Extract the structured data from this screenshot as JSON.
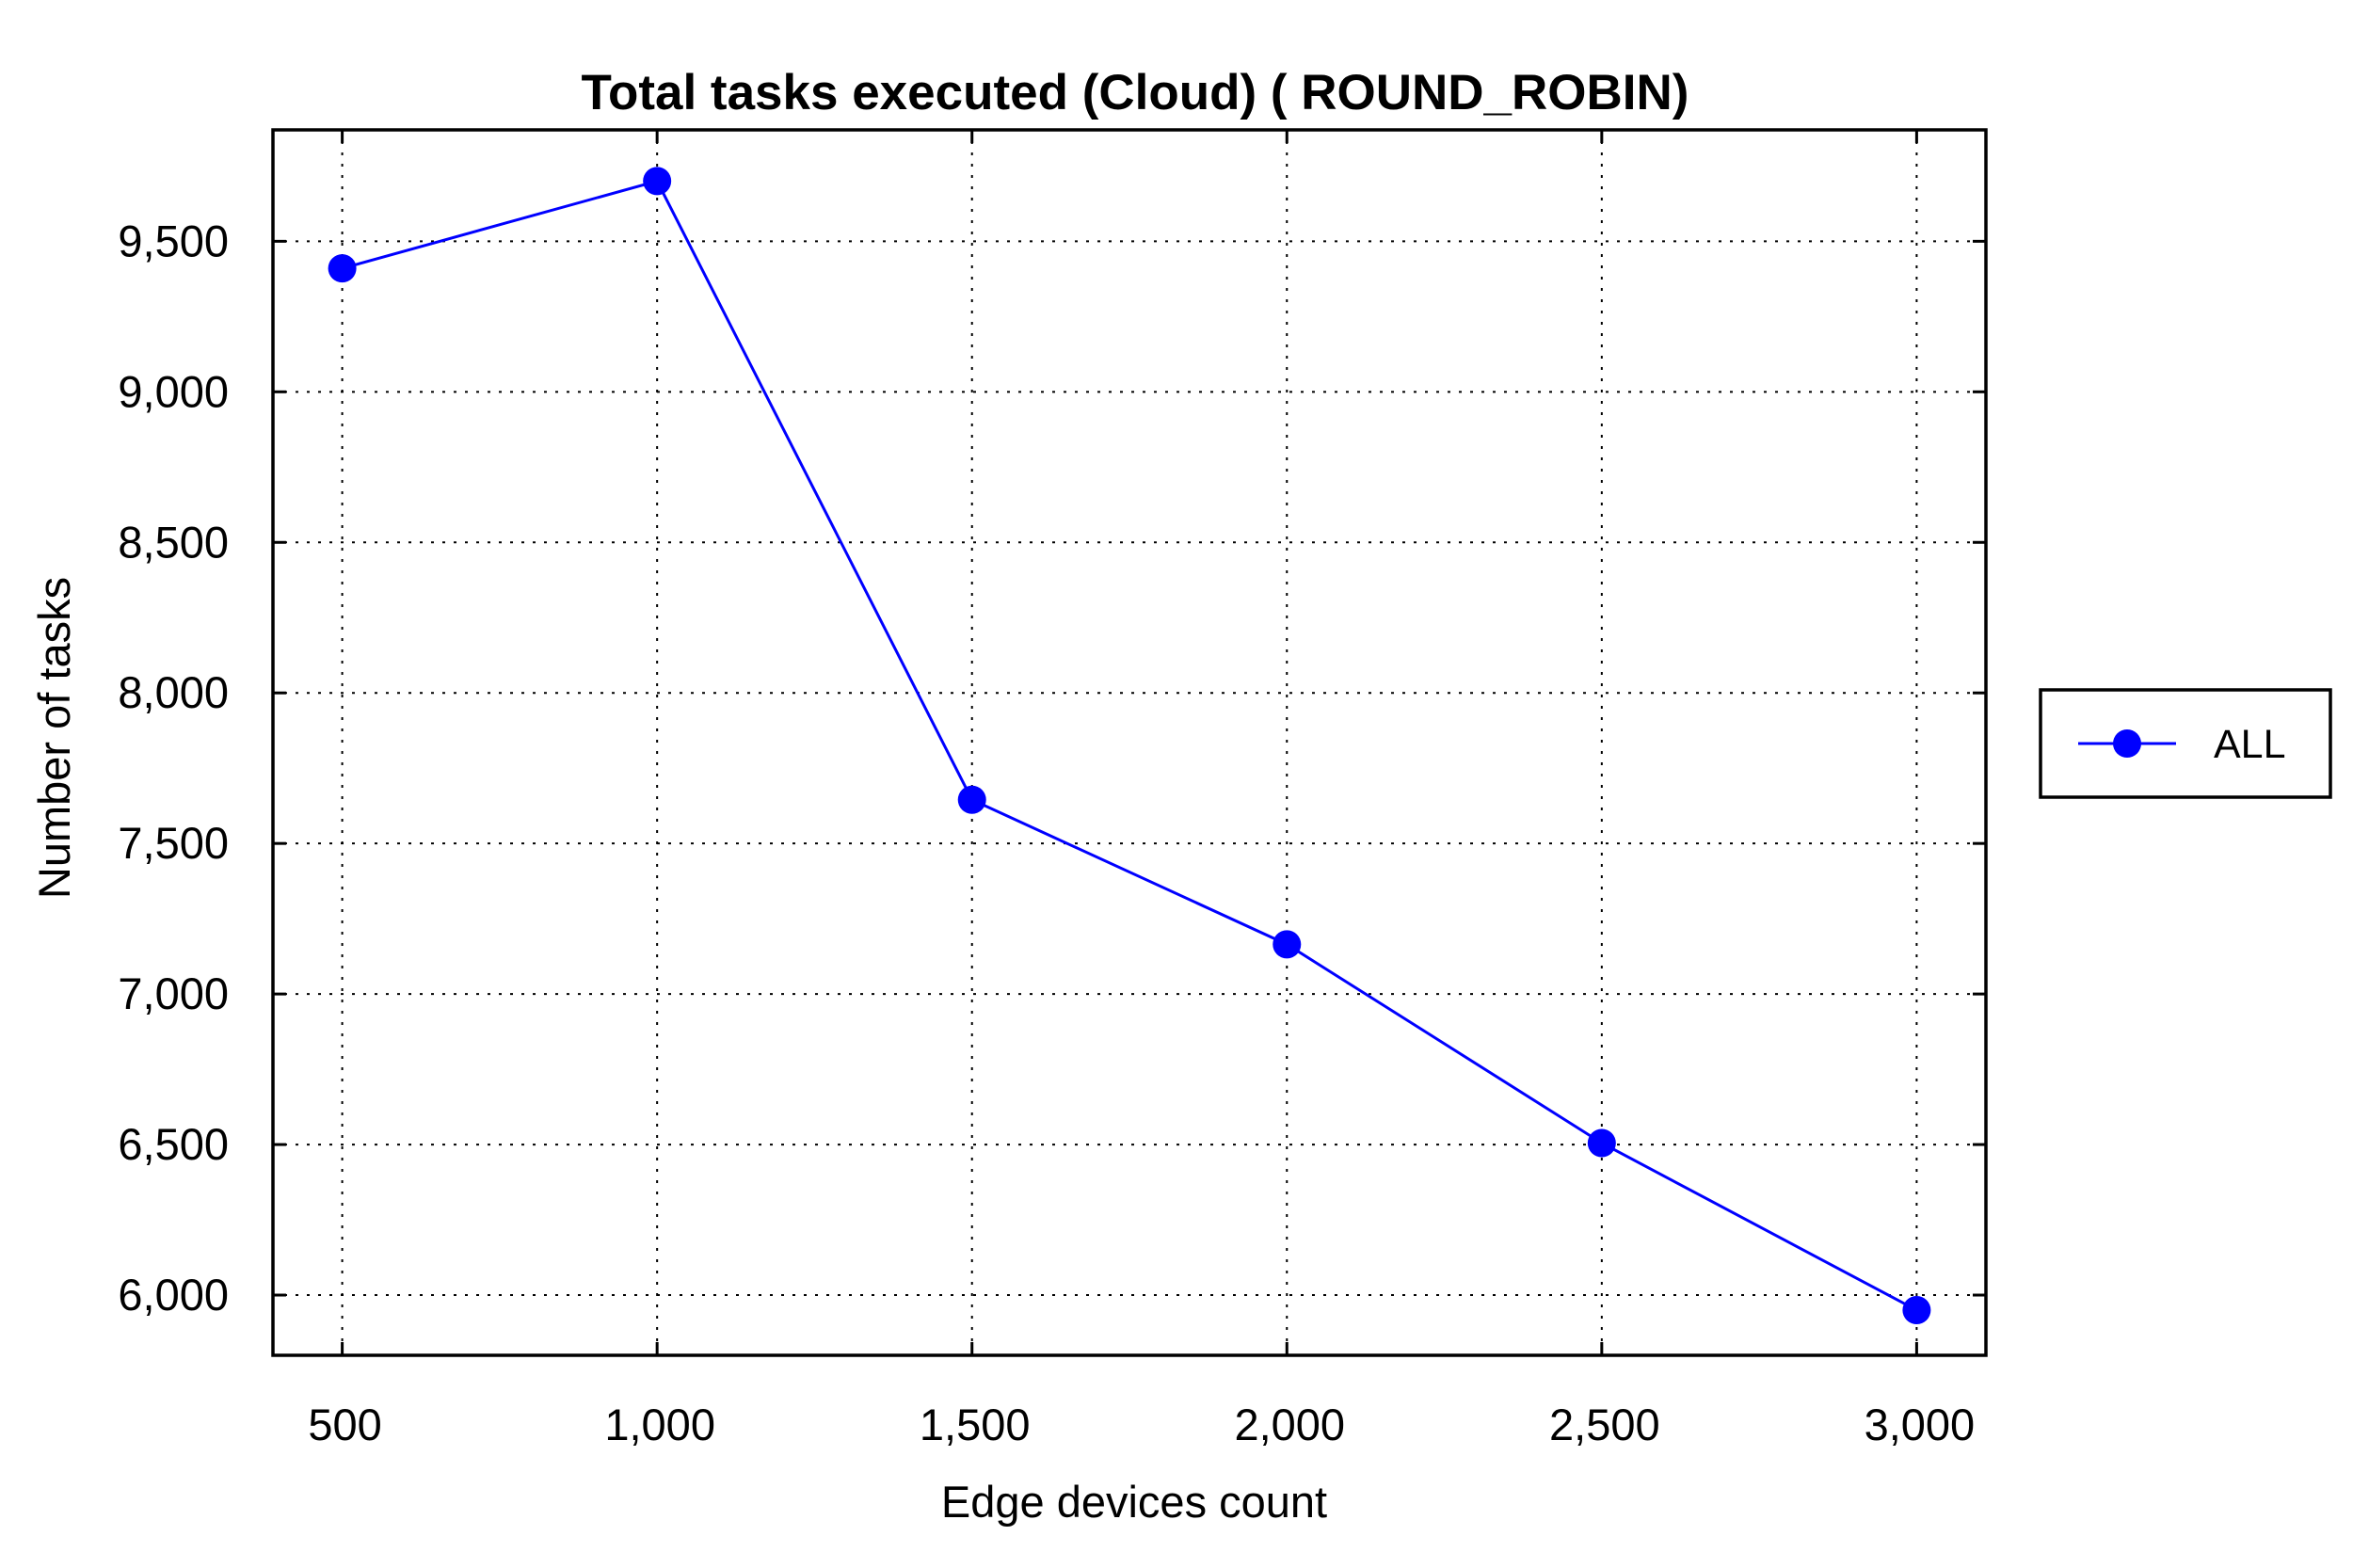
{
  "chart_data": {
    "type": "line",
    "title": "Total tasks executed (Cloud) ( ROUND_ROBIN)",
    "xlabel": "Edge devices count",
    "ylabel": "Number of tasks",
    "x": [
      500,
      1000,
      1500,
      2000,
      2500,
      3000
    ],
    "x_tick_labels": [
      "500",
      "1,000",
      "1,500",
      "2,000",
      "2,500",
      "3,000"
    ],
    "y_tick_values": [
      6000,
      6500,
      7000,
      7500,
      8000,
      8500,
      9000,
      9500
    ],
    "y_tick_labels": [
      "6,000",
      "6,500",
      "7,000",
      "7,500",
      "8,000",
      "8,500",
      "9,000",
      "9,500"
    ],
    "xlim": [
      390,
      3110
    ],
    "ylim": [
      5800,
      9870
    ],
    "grid": true,
    "legend_position": "right",
    "series": [
      {
        "name": "ALL",
        "color": "#0000ff",
        "marker": "circle",
        "values": [
          9410,
          9700,
          7645,
          7165,
          6505,
          5950
        ]
      }
    ]
  }
}
